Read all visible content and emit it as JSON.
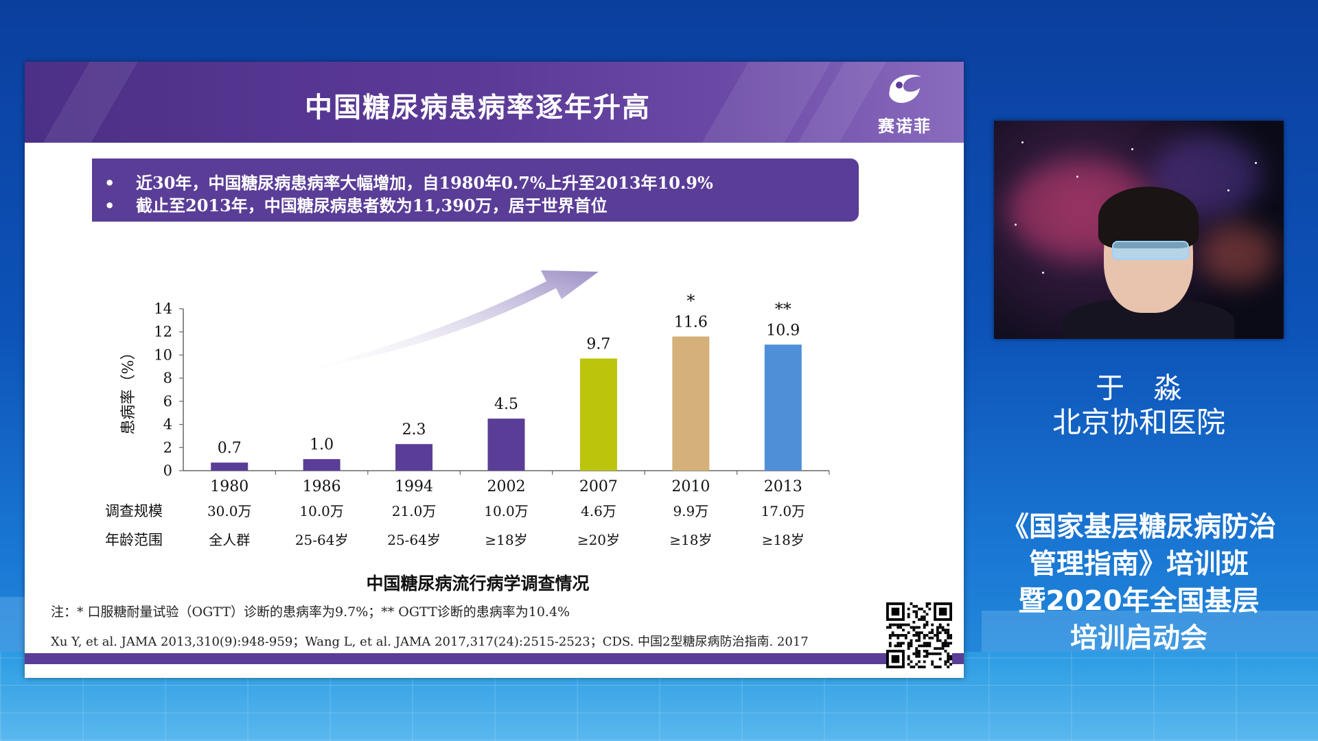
{
  "slide": {
    "title": "中国糖尿病患病率逐年升高",
    "brand": "赛诺菲",
    "bullets": [
      "近30年，中国糖尿病患病率大幅增加，自1980年0.7%上升至2013年10.9%",
      "截止至2013年，中国糖尿病患者数为11,390万，居于世界首位"
    ],
    "bullet_symbol": "•",
    "table_rows": {
      "scale_label": "调查规模",
      "age_label": "年龄范围",
      "scale": [
        "30.0万",
        "10.0万",
        "21.0万",
        "10.0万",
        "4.6万",
        "9.9万",
        "17.0万"
      ],
      "age": [
        "全人群",
        "25-64岁",
        "25-64岁",
        "≥18岁",
        "≥20岁",
        "≥18岁",
        "≥18岁"
      ]
    },
    "chart_title": "中国糖尿病流行病学调查情况",
    "note": "注：* 口服糖耐量试验（OGTT）诊断的患病率为9.7%；** OGTT诊断的患病率为10.4%",
    "references": "Xu Y, et al. JAMA 2013,310(9):948-959；Wang L, et al. JAMA 2017,317(24):2515-2523；CDS. 中国2型糖尿病防治指南. 2017"
  },
  "chart_data": {
    "type": "bar",
    "categories": [
      "1980",
      "1986",
      "1994",
      "2002",
      "2007",
      "2010",
      "2013"
    ],
    "values": [
      0.7,
      1.0,
      2.3,
      4.5,
      9.7,
      11.6,
      10.9
    ],
    "value_labels": [
      "0.7",
      "1.0",
      "2.3",
      "4.5",
      "9.7",
      "11.6",
      "10.9"
    ],
    "bar_colors": [
      "#5a3d97",
      "#5a3d97",
      "#5a3d97",
      "#5a3d97",
      "#bcc40c",
      "#d5b07a",
      "#4e8fd8"
    ],
    "annotations": [
      "",
      "",
      "",
      "",
      "",
      "*",
      "**"
    ],
    "ylabel": "患病率（%）",
    "ylim": [
      0,
      14
    ],
    "yticks": [
      0,
      2,
      4,
      6,
      8,
      10,
      12,
      14
    ],
    "trend_arrow": true,
    "grid": false
  },
  "speaker": {
    "name": "于　淼",
    "affiliation": "北京协和医院"
  },
  "event": {
    "lines": [
      "《国家基层糖尿病防治",
      "管理指南》培训班",
      "暨2020年全国基层",
      "培训启动会"
    ]
  }
}
